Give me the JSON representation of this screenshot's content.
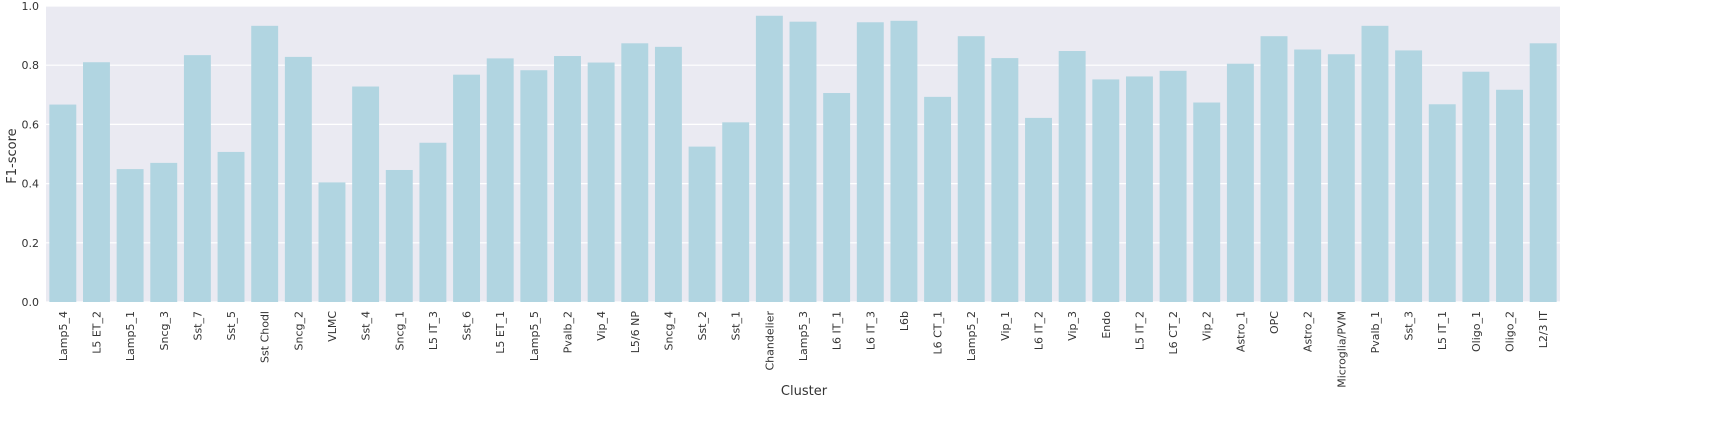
{
  "chart_data": {
    "type": "bar",
    "xlabel": "Cluster",
    "ylabel": "F1-score",
    "ylim": [
      0,
      1.0
    ],
    "yticks": [
      "0.0",
      "0.2",
      "0.4",
      "0.6",
      "0.8",
      "1.0"
    ],
    "grid": true,
    "categories": [
      "Lamp5_4",
      "L5 ET_2",
      "Lamp5_1",
      "Sncg_3",
      "Sst_7",
      "Sst_5",
      "Sst Chodl",
      "Sncg_2",
      "VLMC",
      "Sst_4",
      "Sncg_1",
      "L5 IT_3",
      "Sst_6",
      "L5 ET_1",
      "Lamp5_5",
      "Pvalb_2",
      "Vip_4",
      "L5/6 NP",
      "Sncg_4",
      "Sst_2",
      "Sst_1",
      "Chandelier",
      "Lamp5_3",
      "L6 IT_1",
      "L6 IT_3",
      "L6b",
      "L6 CT_1",
      "Lamp5_2",
      "Vip_1",
      "L6 IT_2",
      "Vip_3",
      "Endo",
      "L5 IT_2",
      "L6 CT_2",
      "Vip_2",
      "Astro_1",
      "OPC",
      "Astro_2",
      "Microglia/PVM",
      "Pvalb_1",
      "Sst_3",
      "L5 IT_1",
      "Oligo_1",
      "Oligo_2",
      "L2/3 IT"
    ],
    "values": [
      0.667,
      0.81,
      0.449,
      0.47,
      0.834,
      0.507,
      0.933,
      0.828,
      0.404,
      0.728,
      0.446,
      0.538,
      0.768,
      0.823,
      0.783,
      0.831,
      0.809,
      0.874,
      0.862,
      0.525,
      0.607,
      0.967,
      0.947,
      0.706,
      0.945,
      0.95,
      0.693,
      0.898,
      0.824,
      0.622,
      0.848,
      0.752,
      0.762,
      0.781,
      0.674,
      0.805,
      0.898,
      0.853,
      0.837,
      0.933,
      0.85,
      0.668,
      0.778,
      0.717,
      0.874
    ],
    "bar_color": "#b1d5e1",
    "background_color": "#eaeaf2",
    "grid_color": "#ffffff"
  }
}
